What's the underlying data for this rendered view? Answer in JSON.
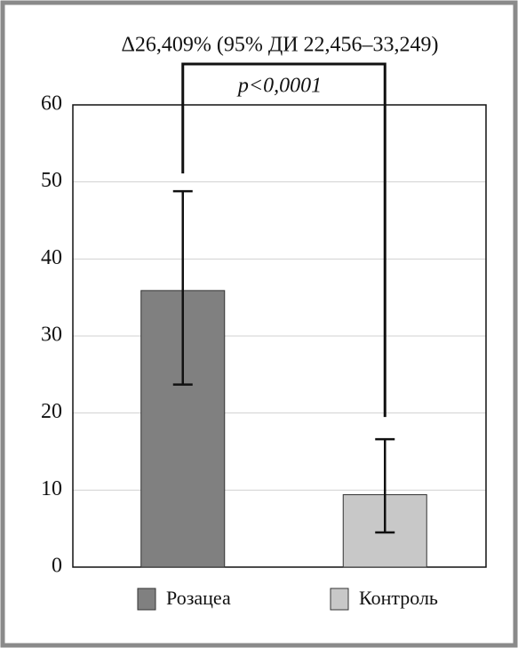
{
  "chart_data": {
    "type": "bar",
    "annotation": "Δ26,409% (95% ДИ 22,456–33,249)",
    "p_value": "p<0,0001",
    "series": [
      {
        "name": "Розацеа",
        "color": "#808080",
        "values": [
          35.9
        ],
        "lower": [
          23.7
        ],
        "upper": [
          48.8
        ]
      },
      {
        "name": "Контроль",
        "color": "#c8c8c8",
        "values": [
          9.4
        ],
        "lower": [
          4.5
        ],
        "upper": [
          16.6
        ]
      }
    ],
    "ylim": [
      0,
      60
    ],
    "yticks": [
      0,
      10,
      20,
      30,
      40,
      50,
      60
    ],
    "grid": true
  }
}
